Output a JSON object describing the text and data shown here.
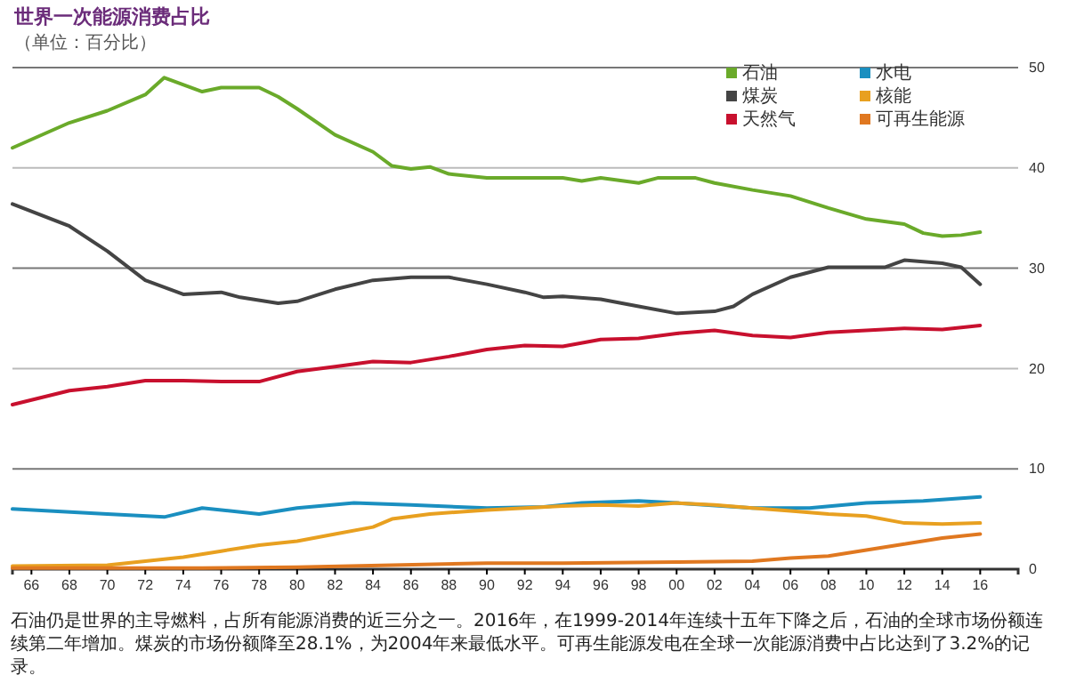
{
  "chart_data": {
    "type": "line",
    "title": "世界一次能源消费占比",
    "subtitle": "（单位：百分比）",
    "annotations": [
      "石油仍是世界的主导燃料，占所有能源消费的近三分之一。2016年，在1999-2014年连续十五年下降之后，石油的全球市场份额连续第二年增加。煤炭的市场份额降至28.1%，为2004年来最低水平。可再生能源发电在全球一次能源消费中占比达到了3.2%的记录。"
    ],
    "series": [
      {
        "name": "石油",
        "color": "#6aaa2a",
        "x": [
          1965,
          1968,
          1970,
          1972,
          1973,
          1975,
          1976,
          1978,
          1979,
          1980,
          1982,
          1984,
          1985,
          1986,
          1987,
          1988,
          1990,
          1992,
          1994,
          1995,
          1996,
          1998,
          1999,
          2001,
          2002,
          2004,
          2006,
          2008,
          2010,
          2012,
          2013,
          2014,
          2015,
          2016
        ],
        "values": [
          42.0,
          44.5,
          45.7,
          47.3,
          49.0,
          47.6,
          48.0,
          48.0,
          47.1,
          45.9,
          43.3,
          41.6,
          40.2,
          39.9,
          40.1,
          39.4,
          39.0,
          39.0,
          39.0,
          38.7,
          39.0,
          38.5,
          39.0,
          39.0,
          38.5,
          37.8,
          37.2,
          36.0,
          34.9,
          34.4,
          33.5,
          33.2,
          33.3,
          33.6
        ]
      },
      {
        "name": "煤炭",
        "color": "#444444",
        "x": [
          1965,
          1968,
          1970,
          1972,
          1974,
          1976,
          1977,
          1979,
          1980,
          1982,
          1984,
          1986,
          1988,
          1990,
          1992,
          1993,
          1994,
          1996,
          1998,
          2000,
          2002,
          2003,
          2004,
          2006,
          2008,
          2010,
          2011,
          2012,
          2014,
          2015,
          2016
        ],
        "values": [
          36.4,
          34.2,
          31.7,
          28.8,
          27.4,
          27.6,
          27.1,
          26.5,
          26.7,
          27.9,
          28.8,
          29.1,
          29.1,
          28.4,
          27.6,
          27.1,
          27.2,
          26.9,
          26.2,
          25.5,
          25.7,
          26.2,
          27.4,
          29.1,
          30.1,
          30.1,
          30.1,
          30.8,
          30.5,
          30.1,
          28.4
        ]
      },
      {
        "name": "天然气",
        "color": "#c8102e",
        "x": [
          1965,
          1968,
          1970,
          1972,
          1974,
          1976,
          1978,
          1980,
          1982,
          1984,
          1986,
          1988,
          1990,
          1992,
          1994,
          1996,
          1998,
          2000,
          2002,
          2004,
          2006,
          2008,
          2010,
          2012,
          2014,
          2016
        ],
        "values": [
          16.4,
          17.8,
          18.2,
          18.8,
          18.8,
          18.7,
          18.7,
          19.7,
          20.2,
          20.7,
          20.6,
          21.2,
          21.9,
          22.3,
          22.2,
          22.9,
          23.0,
          23.5,
          23.8,
          23.3,
          23.1,
          23.6,
          23.8,
          24.0,
          23.9,
          24.3
        ]
      },
      {
        "name": "水电",
        "color": "#1a8fc0",
        "x": [
          1965,
          1970,
          1973,
          1975,
          1978,
          1980,
          1983,
          1986,
          1990,
          1993,
          1995,
          1998,
          2000,
          2004,
          2007,
          2010,
          2013,
          2016
        ],
        "values": [
          6.0,
          5.5,
          5.2,
          6.1,
          5.5,
          6.1,
          6.6,
          6.4,
          6.1,
          6.2,
          6.6,
          6.8,
          6.6,
          6.1,
          6.1,
          6.6,
          6.8,
          7.2
        ]
      },
      {
        "name": "核能",
        "color": "#e8a020",
        "x": [
          1965,
          1970,
          1972,
          1974,
          1976,
          1978,
          1980,
          1982,
          1984,
          1985,
          1987,
          1990,
          1994,
          1996,
          1998,
          2000,
          2002,
          2004,
          2006,
          2008,
          2010,
          2012,
          2014,
          2016
        ],
        "values": [
          0.3,
          0.4,
          0.8,
          1.2,
          1.8,
          2.4,
          2.8,
          3.5,
          4.2,
          5.0,
          5.5,
          5.9,
          6.3,
          6.4,
          6.3,
          6.6,
          6.4,
          6.1,
          5.8,
          5.5,
          5.3,
          4.6,
          4.5,
          4.6
        ]
      },
      {
        "name": "可再生能源",
        "color": "#e07820",
        "x": [
          1965,
          1975,
          1980,
          1985,
          1990,
          1994,
          2000,
          2004,
          2006,
          2008,
          2010,
          2012,
          2014,
          2016
        ],
        "values": [
          0.1,
          0.1,
          0.2,
          0.4,
          0.6,
          0.6,
          0.7,
          0.8,
          1.1,
          1.3,
          1.9,
          2.5,
          3.1,
          3.5
        ]
      }
    ],
    "xlim": [
      1965,
      2018
    ],
    "xticks": [
      {
        "value": 1966,
        "label": "66"
      },
      {
        "value": 1968,
        "label": "68"
      },
      {
        "value": 1970,
        "label": "70"
      },
      {
        "value": 1972,
        "label": "72"
      },
      {
        "value": 1974,
        "label": "74"
      },
      {
        "value": 1976,
        "label": "76"
      },
      {
        "value": 1978,
        "label": "78"
      },
      {
        "value": 1980,
        "label": "80"
      },
      {
        "value": 1982,
        "label": "82"
      },
      {
        "value": 1984,
        "label": "84"
      },
      {
        "value": 1986,
        "label": "86"
      },
      {
        "value": 1988,
        "label": "88"
      },
      {
        "value": 1990,
        "label": "90"
      },
      {
        "value": 1992,
        "label": "92"
      },
      {
        "value": 1994,
        "label": "94"
      },
      {
        "value": 1996,
        "label": "96"
      },
      {
        "value": 1998,
        "label": "98"
      },
      {
        "value": 2000,
        "label": "00"
      },
      {
        "value": 2002,
        "label": "02"
      },
      {
        "value": 2004,
        "label": "04"
      },
      {
        "value": 2006,
        "label": "06"
      },
      {
        "value": 2008,
        "label": "08"
      },
      {
        "value": 2010,
        "label": "10"
      },
      {
        "value": 2012,
        "label": "12"
      },
      {
        "value": 2014,
        "label": "14"
      },
      {
        "value": 2016,
        "label": "16"
      }
    ],
    "ylim": [
      0,
      50
    ],
    "yticks": [
      0,
      10,
      20,
      30,
      40,
      50
    ],
    "grid": "y",
    "legend": "top right",
    "line_style": "solid",
    "marker": "none"
  }
}
